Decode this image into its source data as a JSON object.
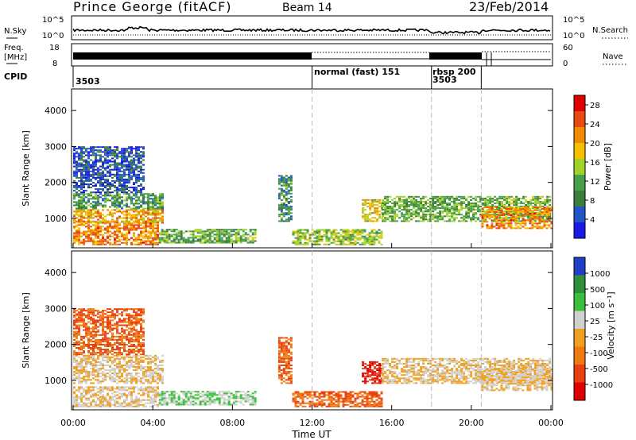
{
  "header": {
    "station": "Prince George (fitACF)",
    "beam": "Beam 14",
    "date": "23/Feb/2014"
  },
  "noise_panel": {
    "left_label": "N.Sky",
    "left_ticks": [
      "10^5",
      "10^0"
    ],
    "right_label": "N.Search",
    "right_ticks": [
      "10^5",
      "10^0"
    ]
  },
  "freq_panel": {
    "left_label_1": "Freq.",
    "left_label_2": "[MHz]",
    "left_ticks": [
      "18",
      "8"
    ],
    "right_label": "Nave",
    "right_ticks": [
      "60",
      "0"
    ]
  },
  "cpid_panel": {
    "label": "CPID",
    "segments": [
      {
        "text": "3503",
        "start_hour": 0
      },
      {
        "text": "normal (fast) 151",
        "start_hour": 12
      },
      {
        "text": "rbsp 200",
        "start_hour": 18.1
      },
      {
        "text": "3503",
        "start_hour": 18.1
      }
    ],
    "dividers_hours": [
      12,
      18.0,
      20.5
    ]
  },
  "chart_data": [
    {
      "type": "heatmap",
      "name": "power",
      "xlabel": "",
      "ylabel": "Slant Range [km]",
      "x_range_hours": [
        0,
        24
      ],
      "y_range_km": [
        180,
        4600
      ],
      "y_ticks": [
        "1000",
        "2000",
        "3000",
        "4000"
      ],
      "colorbar": {
        "label": "Power [dB]",
        "ticks": [
          "4",
          "8",
          "12",
          "16",
          "20",
          "24",
          "28"
        ],
        "range": [
          0,
          30
        ],
        "colors": [
          "#1a1ae6",
          "#2255c8",
          "#3c7f3c",
          "#47a14a",
          "#a0d22a",
          "#f5c000",
          "#f08a00",
          "#e84a10",
          "#e00000"
        ]
      },
      "echo_regions": [
        {
          "h0": 0,
          "h1": 4.3,
          "r0": 250,
          "r1": 900,
          "v": 22
        },
        {
          "h0": 0,
          "h1": 4.5,
          "r0": 850,
          "r1": 1250,
          "v": 20
        },
        {
          "h0": 0,
          "h1": 4.5,
          "r0": 1250,
          "r1": 1700,
          "v": 10
        },
        {
          "h0": 0,
          "h1": 3.5,
          "r0": 1700,
          "r1": 3000,
          "v": 5
        },
        {
          "h0": 4.3,
          "h1": 9.2,
          "r0": 300,
          "r1": 700,
          "v": 12
        },
        {
          "h0": 10.3,
          "h1": 11.0,
          "r0": 900,
          "r1": 2200,
          "v": 9
        },
        {
          "h0": 11.0,
          "h1": 15.5,
          "r0": 250,
          "r1": 700,
          "v": 14
        },
        {
          "h0": 14.5,
          "h1": 15.5,
          "r0": 900,
          "r1": 1500,
          "v": 18
        },
        {
          "h0": 15.5,
          "h1": 24,
          "r0": 900,
          "r1": 1600,
          "v": 12
        },
        {
          "h0": 20.5,
          "h1": 24,
          "r0": 700,
          "r1": 1300,
          "v": 22
        }
      ]
    },
    {
      "type": "heatmap",
      "name": "velocity",
      "xlabel": "Time UT",
      "ylabel": "Slant Range [km]",
      "x_range_hours": [
        0,
        24
      ],
      "x_ticks": [
        "00:00",
        "04:00",
        "08:00",
        "12:00",
        "16:00",
        "20:00",
        "00:00"
      ],
      "y_range_km": [
        180,
        4600
      ],
      "y_ticks": [
        "1000",
        "2000",
        "3000",
        "4000"
      ],
      "colorbar": {
        "label": "Velocity [m s⁻¹]",
        "ticks": [
          "1000",
          "500",
          "100",
          "25",
          "-25",
          "-100",
          "-500",
          "-1000"
        ],
        "colors": [
          "#1e3fc8",
          "#2f8f3a",
          "#3cbf3c",
          "#d0d0d0",
          "#f0a020",
          "#f07a10",
          "#e84010",
          "#e00000"
        ]
      },
      "echo_regions": [
        {
          "h0": 0,
          "h1": 4.5,
          "r0": 900,
          "r1": 1700,
          "v": 25
        },
        {
          "h0": 0,
          "h1": 4.3,
          "r0": 250,
          "r1": 800,
          "v": 25
        },
        {
          "h0": 0,
          "h1": 3.5,
          "r0": 1700,
          "r1": 3000,
          "v": -100
        },
        {
          "h0": 4.3,
          "h1": 9.2,
          "r0": 300,
          "r1": 700,
          "v": 100
        },
        {
          "h0": 10.3,
          "h1": 11.0,
          "r0": 900,
          "r1": 2200,
          "v": -100
        },
        {
          "h0": 11.0,
          "h1": 15.5,
          "r0": 250,
          "r1": 700,
          "v": -100
        },
        {
          "h0": 14.5,
          "h1": 15.5,
          "r0": 900,
          "r1": 1500,
          "v": -500
        },
        {
          "h0": 15.5,
          "h1": 24,
          "r0": 900,
          "r1": 1600,
          "v": 25
        },
        {
          "h0": 20.5,
          "h1": 24,
          "r0": 700,
          "r1": 1300,
          "v": 25
        }
      ]
    }
  ]
}
